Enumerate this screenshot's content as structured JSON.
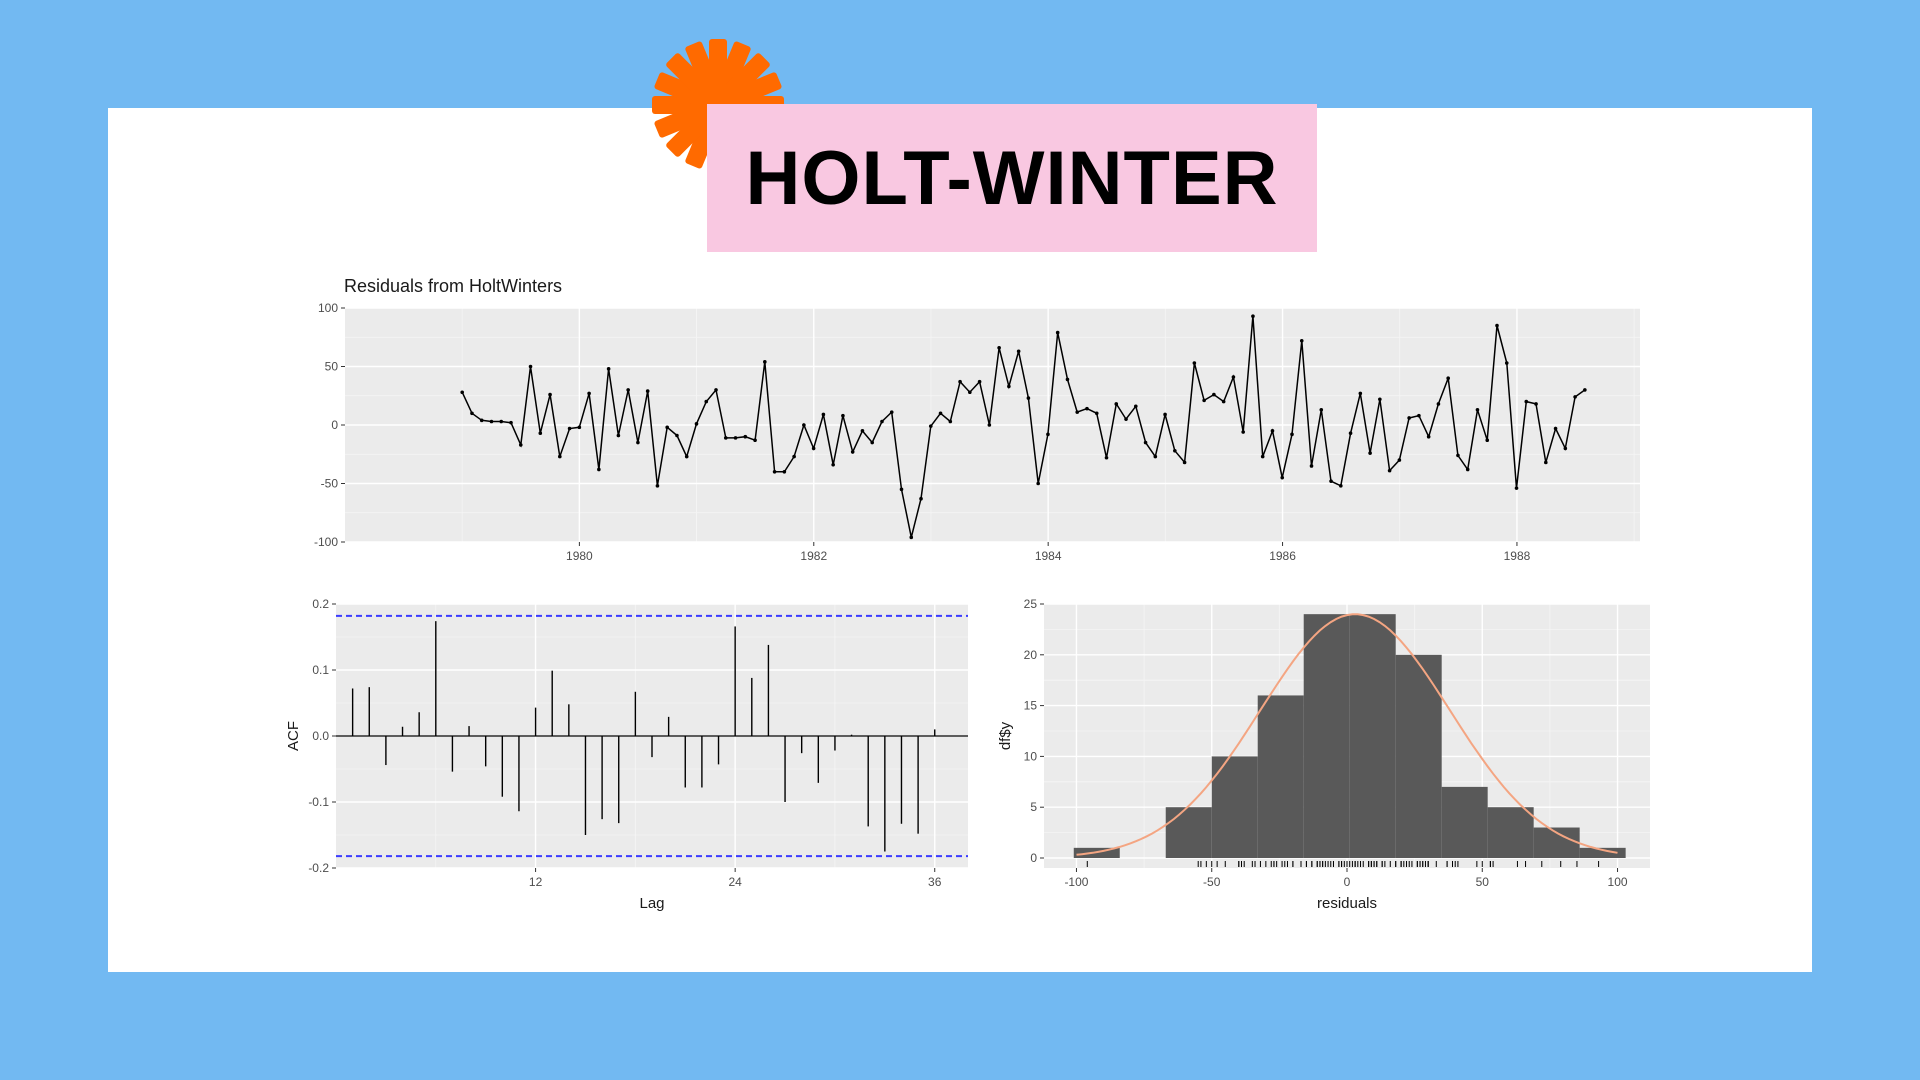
{
  "slide": {
    "title": "HOLT-WINTER",
    "colors": {
      "background": "#72b9f2",
      "card": "#ffffff",
      "title_box": "#f9c8e1",
      "accent_asterisk": "#ff6a00",
      "panel_bg": "#ebebeb",
      "series_line": "#000000",
      "acf_bounds": "#3b3bff",
      "histogram_bar": "#595959",
      "density_curve": "#f4a582"
    },
    "decoration_icon": "asterisk-icon"
  },
  "chart_data": [
    {
      "type": "line",
      "title": "Residuals from HoltWinters",
      "xlabel": "",
      "ylabel": "",
      "xlim": [
        1978.0,
        1989.05
      ],
      "ylim": [
        -100,
        100
      ],
      "x_ticks": [
        1980,
        1982,
        1984,
        1986,
        1988
      ],
      "y_ticks": [
        100,
        50,
        0,
        -50,
        -100
      ],
      "grid": true,
      "x_start": 1979.0,
      "x_step": 0.0833,
      "series": [
        {
          "values": [
            28,
            10,
            4,
            3,
            3,
            2,
            -17,
            50,
            -7,
            26,
            -27,
            -3,
            -2,
            27,
            -38,
            48,
            -9,
            30,
            -15,
            29,
            -52,
            -2,
            -9,
            -27,
            1,
            20,
            30,
            -11,
            -11,
            -10,
            -13,
            54,
            -40,
            -40,
            -27,
            0,
            -20,
            9,
            -34,
            8,
            -23,
            -5,
            -15,
            3,
            11,
            -55,
            -96,
            -63,
            -1,
            10,
            3,
            37,
            28,
            37,
            0,
            66,
            33,
            63,
            23,
            -50,
            -8,
            79,
            39,
            11,
            14,
            10,
            -28,
            18,
            5,
            16,
            -15,
            -27,
            9,
            -22,
            -32,
            53,
            21,
            26,
            20,
            41,
            -6,
            93,
            -27,
            -5,
            -45,
            -8,
            72,
            -35,
            13,
            -48,
            -52,
            -7,
            27,
            -24,
            22,
            -39,
            -30,
            6,
            8,
            -10,
            18,
            40,
            -26,
            -38,
            13,
            -13,
            85,
            53,
            -54,
            20,
            18,
            -32,
            -3,
            -20,
            24,
            30
          ]
        }
      ]
    },
    {
      "type": "bar",
      "title": "",
      "xlabel": "Lag",
      "ylabel": "ACF",
      "xlim": [
        0,
        38
      ],
      "ylim": [
        -0.2,
        0.2
      ],
      "x_ticks": [
        12,
        24,
        36
      ],
      "y_ticks": [
        0.2,
        0.1,
        0.0,
        -0.1,
        -0.2
      ],
      "x_tick_labels": [
        "12",
        "24",
        "36"
      ],
      "y_tick_labels": [
        "0.2",
        "0.1",
        "0.0",
        "-0.1",
        "-0.2"
      ],
      "significance_bounds": [
        0.182,
        -0.182
      ],
      "lags": [
        1,
        2,
        3,
        4,
        5,
        6,
        7,
        8,
        9,
        10,
        11,
        12,
        13,
        14,
        15,
        16,
        17,
        18,
        19,
        20,
        21,
        22,
        23,
        24,
        25,
        26,
        27,
        28,
        29,
        30,
        31,
        32,
        33,
        34,
        35,
        36
      ],
      "values": [
        0.072,
        0.074,
        -0.044,
        0.014,
        0.036,
        0.174,
        -0.054,
        0.015,
        -0.046,
        -0.092,
        -0.114,
        0.043,
        0.099,
        0.048,
        -0.15,
        -0.126,
        -0.132,
        0.067,
        -0.032,
        0.029,
        -0.078,
        -0.078,
        -0.043,
        0.166,
        0.088,
        0.138,
        -0.1,
        -0.026,
        -0.071,
        -0.022,
        0.002,
        -0.137,
        -0.175,
        -0.133,
        -0.148,
        0.01
      ]
    },
    {
      "type": "bar",
      "title": "",
      "xlabel": "residuals",
      "ylabel": "df$y",
      "xlim": [
        -112,
        112
      ],
      "ylim": [
        0,
        25
      ],
      "x_ticks": [
        -100,
        -50,
        0,
        50,
        100
      ],
      "y_ticks": [
        0,
        5,
        10,
        15,
        20,
        25
      ],
      "bins": [
        {
          "x0": -101,
          "x1": -84,
          "count": 1
        },
        {
          "x0": -84,
          "x1": -67,
          "count": 0
        },
        {
          "x0": -67,
          "x1": -50,
          "count": 5
        },
        {
          "x0": -50,
          "x1": -33,
          "count": 10
        },
        {
          "x0": -33,
          "x1": -16,
          "count": 16
        },
        {
          "x0": -16,
          "x1": 1,
          "count": 24
        },
        {
          "x0": 1,
          "x1": 18,
          "count": 24
        },
        {
          "x0": 18,
          "x1": 35,
          "count": 20
        },
        {
          "x0": 35,
          "x1": 52,
          "count": 7
        },
        {
          "x0": 52,
          "x1": 69,
          "count": 5
        },
        {
          "x0": 69,
          "x1": 86,
          "count": 3
        },
        {
          "x0": 86,
          "x1": 103,
          "count": 1
        }
      ],
      "density_curve": {
        "mean": 3,
        "sd": 35,
        "peak": 24
      },
      "rug": [
        -96,
        -55,
        -54,
        -52,
        -50,
        -48,
        -45,
        -40,
        -40,
        -39,
        -38,
        -35,
        -34,
        -32,
        -30,
        -28,
        -27,
        -27,
        -27,
        -26,
        -24,
        -23,
        -22,
        -20,
        -20,
        -17,
        -15,
        -15,
        -13,
        -13,
        -11,
        -11,
        -10,
        -10,
        -9,
        -9,
        -8,
        -7,
        -6,
        -5,
        -5,
        -3,
        -3,
        -2,
        -2,
        -1,
        0,
        0,
        1,
        2,
        3,
        3,
        3,
        4,
        5,
        6,
        8,
        8,
        9,
        9,
        10,
        10,
        10,
        11,
        11,
        13,
        13,
        14,
        16,
        18,
        18,
        20,
        20,
        20,
        21,
        22,
        23,
        24,
        26,
        26,
        27,
        27,
        28,
        28,
        29,
        30,
        30,
        30,
        33,
        37,
        37,
        39,
        40,
        41,
        48,
        50,
        53,
        53,
        54,
        63,
        66,
        72,
        79,
        85,
        93
      ]
    }
  ]
}
